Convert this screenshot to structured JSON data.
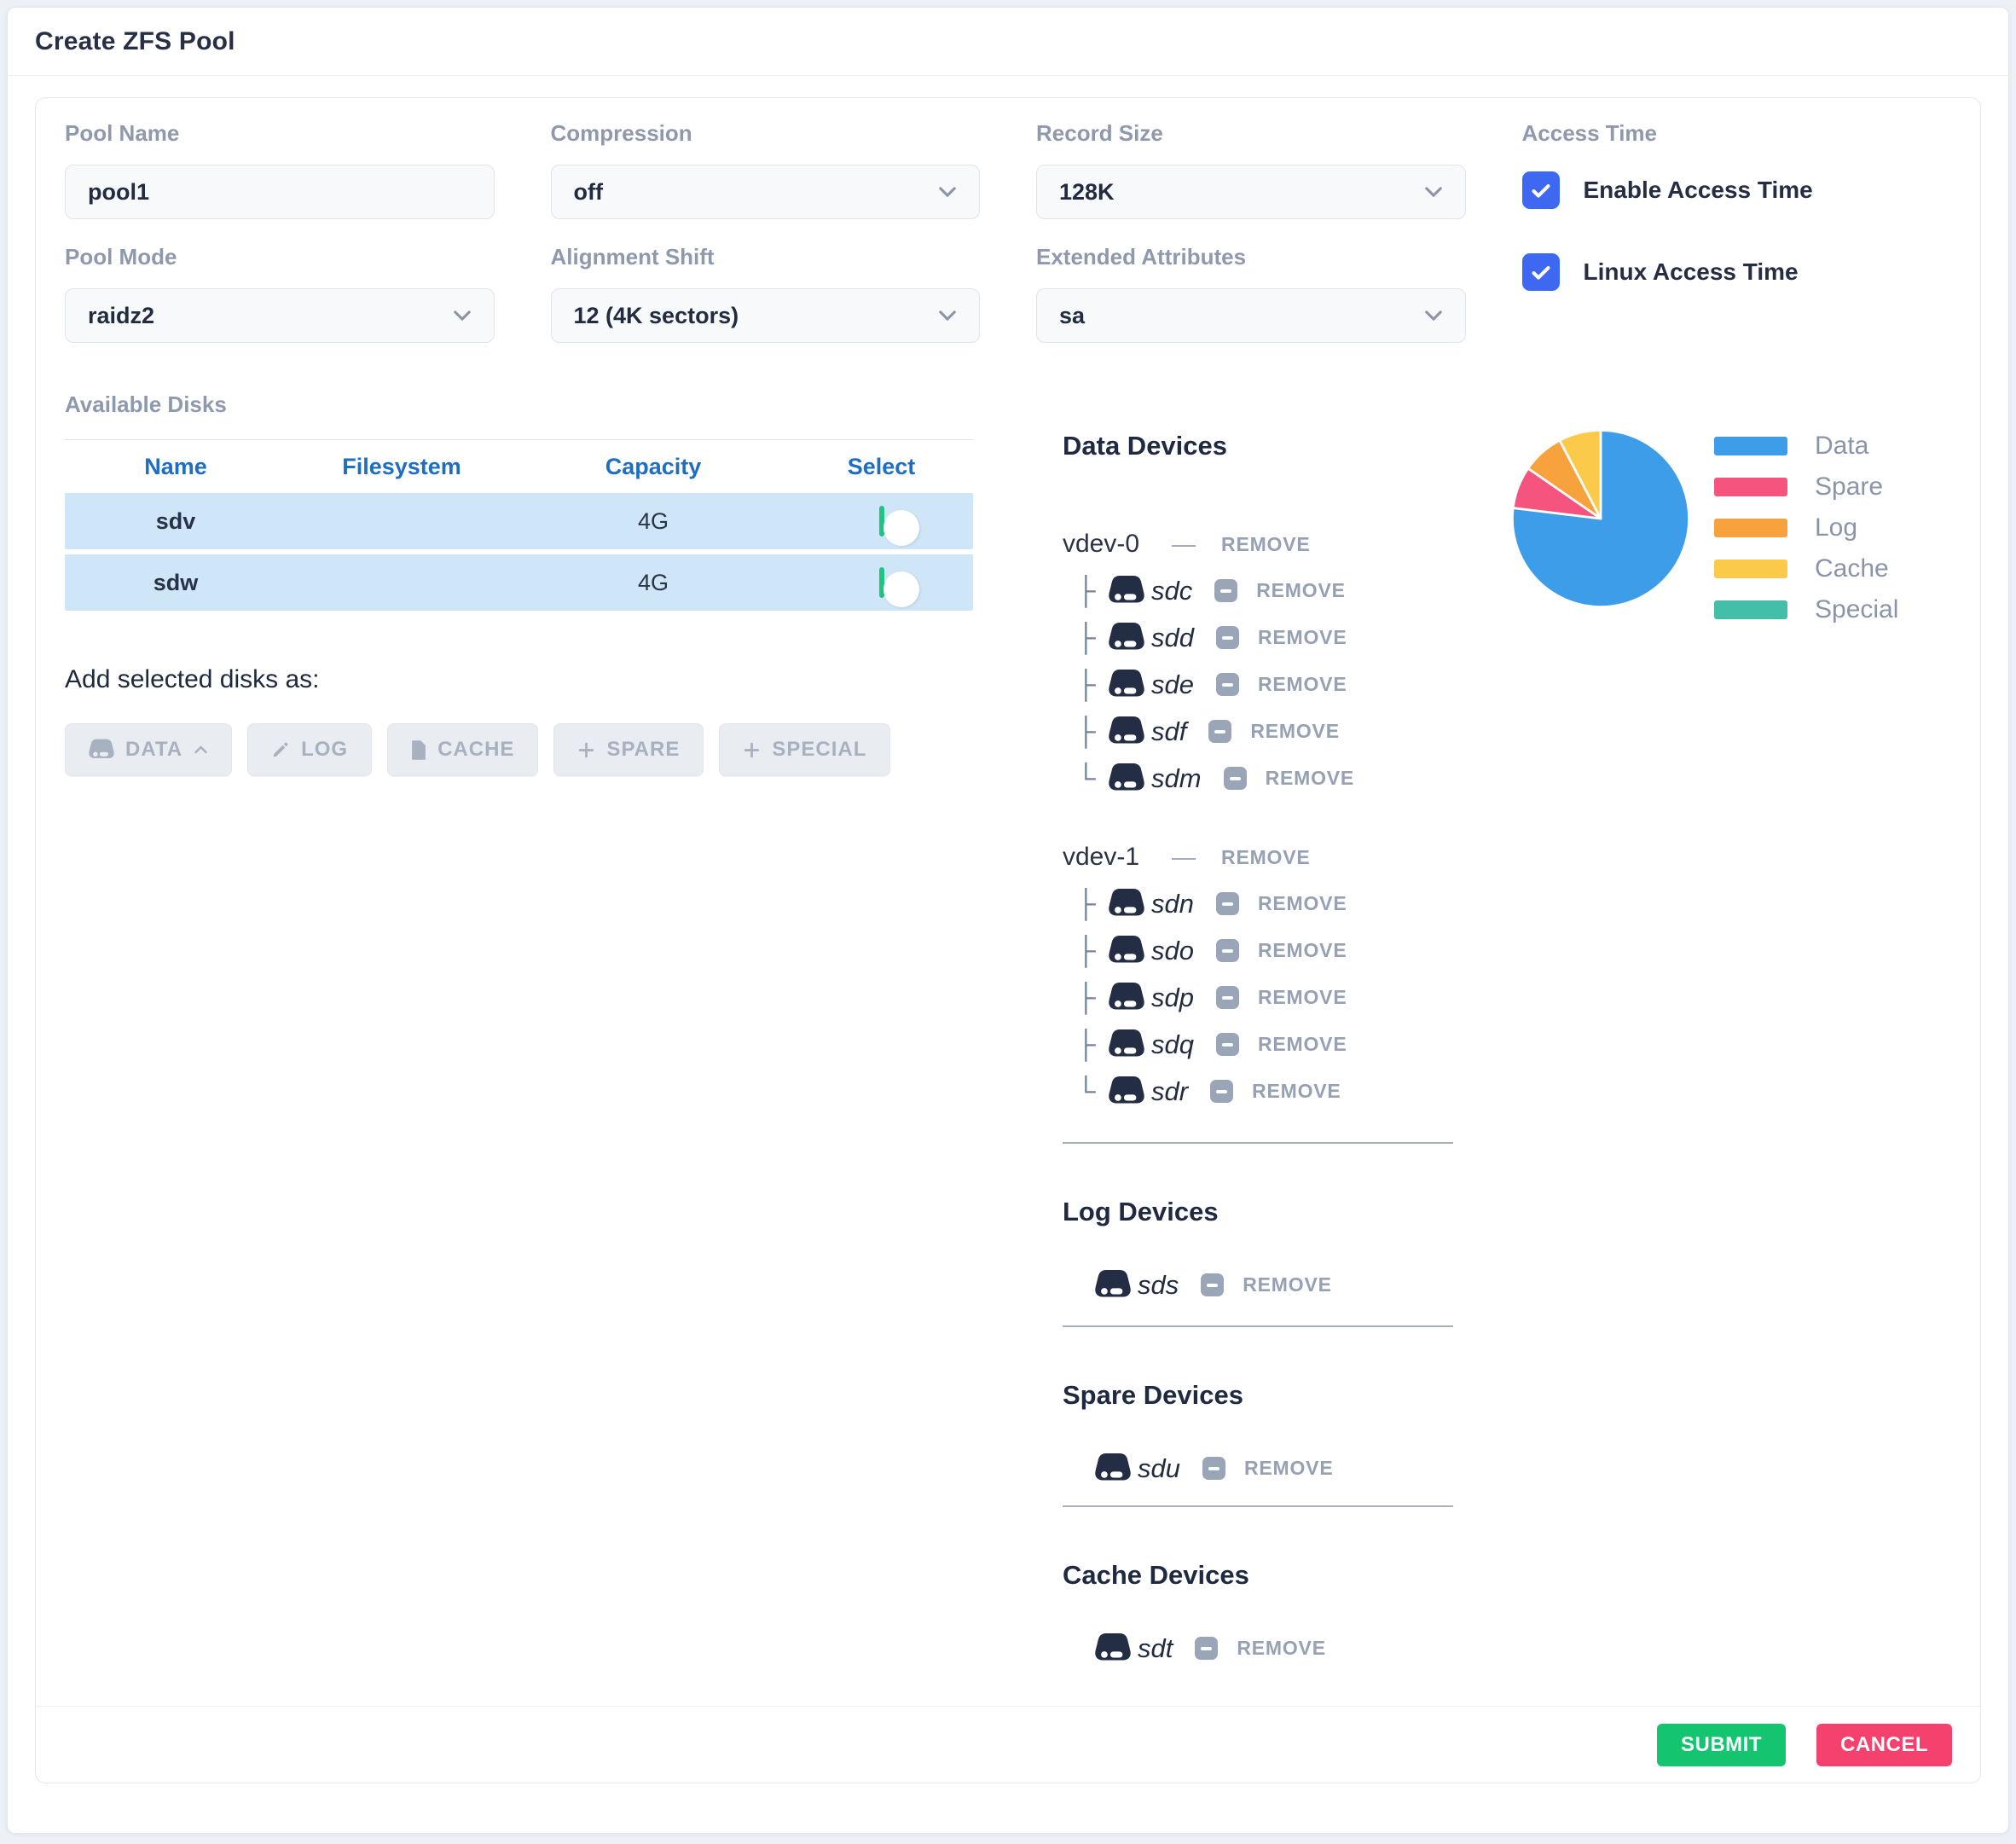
{
  "dialog": {
    "title": "Create ZFS Pool"
  },
  "form": {
    "pool_name": {
      "label": "Pool Name",
      "value": "pool1"
    },
    "compression": {
      "label": "Compression",
      "value": "off"
    },
    "record_size": {
      "label": "Record Size",
      "value": "128K"
    },
    "pool_mode": {
      "label": "Pool Mode",
      "value": "raidz2"
    },
    "alignment_shift": {
      "label": "Alignment Shift",
      "value": "12 (4K sectors)"
    },
    "extended_attributes": {
      "label": "Extended Attributes",
      "value": "sa"
    },
    "access_time": {
      "label": "Access Time",
      "options": [
        {
          "label": "Enable Access Time",
          "checked": true
        },
        {
          "label": "Linux Access Time",
          "checked": true
        }
      ]
    }
  },
  "available_disks": {
    "title": "Available Disks",
    "columns": [
      "Name",
      "Filesystem",
      "Capacity",
      "Select"
    ],
    "rows": [
      {
        "name": "sdv",
        "filesystem": "",
        "capacity": "4G",
        "selected": false
      },
      {
        "name": "sdw",
        "filesystem": "",
        "capacity": "4G",
        "selected": false
      }
    ],
    "add_as_label": "Add selected disks as:",
    "buttons": [
      "DATA",
      "LOG",
      "CACHE",
      "SPARE",
      "SPECIAL"
    ]
  },
  "devices": {
    "remove_label": "REMOVE",
    "data": {
      "title": "Data Devices",
      "vdevs": [
        {
          "name": "vdev-0",
          "disks": [
            "sdc",
            "sdd",
            "sde",
            "sdf",
            "sdm"
          ]
        },
        {
          "name": "vdev-1",
          "disks": [
            "sdn",
            "sdo",
            "sdp",
            "sdq",
            "sdr"
          ]
        }
      ]
    },
    "log": {
      "title": "Log Devices",
      "disks": [
        "sds"
      ]
    },
    "spare": {
      "title": "Spare Devices",
      "disks": [
        "sdu"
      ]
    },
    "cache": {
      "title": "Cache Devices",
      "disks": [
        "sdt"
      ]
    }
  },
  "chart_data": {
    "type": "pie",
    "labels": [
      "Data",
      "Spare",
      "Log",
      "Cache",
      "Special"
    ],
    "values": [
      10,
      1,
      1,
      1,
      0
    ],
    "colors": [
      "#3d9de9",
      "#f4547e",
      "#f8a23d",
      "#fbca4b",
      "#43bfa9"
    ],
    "legend_position": "right"
  },
  "icons": {
    "tree_branch": "├",
    "tree_end": "└",
    "minus_dash": "—"
  },
  "footer": {
    "submit": "SUBMIT",
    "cancel": "CANCEL"
  },
  "colors": {
    "checkbox_blue": "#3e68f1",
    "toggle_green": "#21c483",
    "table_header_blue": "#1e6ec2",
    "row_blue": "#cfe5f8",
    "submit_green": "#14c46e",
    "cancel_red": "#f4416d"
  }
}
